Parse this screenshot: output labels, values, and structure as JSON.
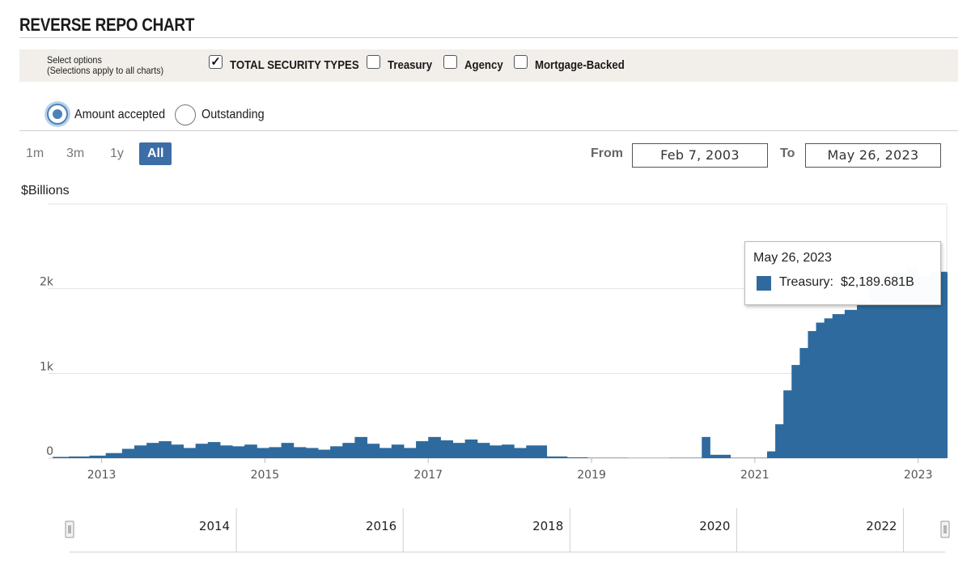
{
  "header": {
    "title": "REVERSE REPO CHART"
  },
  "options": {
    "select_line1": "Select options",
    "select_line2": "(Selections apply to all charts)",
    "checkboxes": [
      {
        "label": "TOTAL SECURITY TYPES",
        "checked": true
      },
      {
        "label": "Treasury",
        "checked": false
      },
      {
        "label": "Agency",
        "checked": false
      },
      {
        "label": "Mortgage-Backed",
        "checked": false
      }
    ],
    "check_glyph": "✓",
    "radios": [
      {
        "label": "Amount accepted",
        "selected": true
      },
      {
        "label": "Outstanding",
        "selected": false
      }
    ]
  },
  "range": {
    "buttons": [
      "1m",
      "3m",
      "1y",
      "All"
    ],
    "active": "All",
    "from_label": "From",
    "from_value": "Feb 7, 2003",
    "to_label": "To",
    "to_value": "May 26, 2023"
  },
  "tooltip": {
    "date": "May 26, 2023",
    "series": "Treasury:",
    "value": "$2,189.681B"
  },
  "colors": {
    "bar": "#2e6a9d",
    "accent": "#3c6da6"
  },
  "chart_data": {
    "type": "bar",
    "ylabel": "$Billions",
    "y_ticks": [
      "0",
      "1k",
      "2k"
    ],
    "x_ticks": [
      "2013",
      "2015",
      "2017",
      "2019",
      "2021",
      "2023"
    ],
    "navigator_ticks": [
      "2014",
      "2016",
      "2018",
      "2020",
      "2022"
    ],
    "ylim": [
      0,
      3000
    ],
    "xlim": [
      2012.4,
      2023.4
    ],
    "grid": true,
    "series": [
      {
        "name": "Treasury",
        "x": [
          2012.45,
          2012.65,
          2012.9,
          2013.1,
          2013.3,
          2013.45,
          2013.6,
          2013.75,
          2013.9,
          2014.05,
          2014.2,
          2014.35,
          2014.5,
          2014.65,
          2014.8,
          2014.95,
          2015.1,
          2015.25,
          2015.4,
          2015.55,
          2015.7,
          2015.85,
          2016.0,
          2016.15,
          2016.3,
          2016.45,
          2016.6,
          2016.75,
          2016.9,
          2017.05,
          2017.2,
          2017.35,
          2017.5,
          2017.65,
          2017.8,
          2017.95,
          2018.1,
          2018.25,
          2018.5,
          2018.75,
          2019.0,
          2019.5,
          2020.0,
          2020.25,
          2020.4,
          2020.5,
          2020.75,
          2021.0,
          2021.2,
          2021.3,
          2021.4,
          2021.5,
          2021.6,
          2021.7,
          2021.8,
          2021.9,
          2022.0,
          2022.15,
          2022.3,
          2022.45,
          2022.6,
          2022.75,
          2022.9,
          2023.05,
          2023.2,
          2023.4
        ],
        "values": [
          15,
          20,
          30,
          60,
          110,
          150,
          180,
          200,
          160,
          120,
          170,
          190,
          150,
          140,
          160,
          120,
          130,
          180,
          130,
          120,
          100,
          140,
          180,
          250,
          170,
          120,
          160,
          120,
          200,
          250,
          210,
          180,
          220,
          180,
          150,
          160,
          120,
          150,
          20,
          10,
          5,
          3,
          5,
          5,
          250,
          40,
          5,
          5,
          80,
          400,
          800,
          1100,
          1300,
          1500,
          1600,
          1650,
          1700,
          1750,
          1850,
          2000,
          2150,
          2200,
          2250,
          2150,
          2200,
          2190
        ]
      }
    ]
  }
}
